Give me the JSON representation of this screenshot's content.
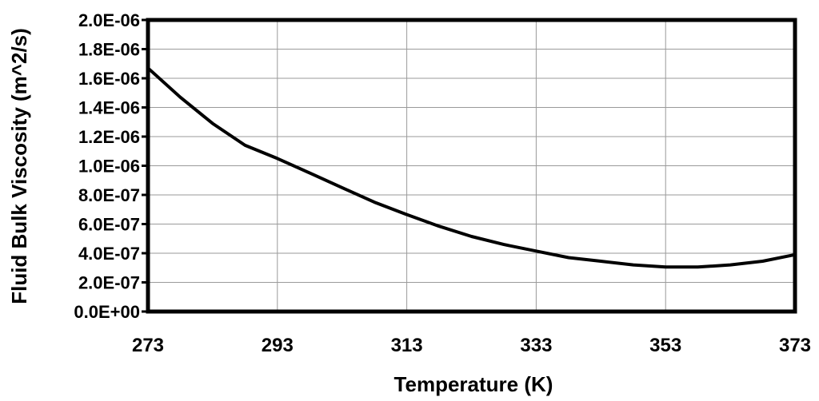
{
  "chart_data": {
    "type": "line",
    "xlabel": "Temperature (K)",
    "ylabel": "Fluid Bulk Viscosity (m^2/s)",
    "xlim": [
      273,
      373
    ],
    "ylim": [
      0,
      2e-06
    ],
    "x_ticks": [
      "273",
      "293",
      "313",
      "333",
      "353",
      "373"
    ],
    "x_tick_values": [
      273,
      293,
      313,
      333,
      353,
      373
    ],
    "y_ticks": [
      "0.0E+00",
      "2.0E-07",
      "4.0E-07",
      "6.0E-07",
      "8.0E-07",
      "1.0E-06",
      "1.2E-06",
      "1.4E-06",
      "1.6E-06",
      "1.8E-06",
      "2.0E-06"
    ],
    "y_tick_values": [
      0,
      2e-07,
      4e-07,
      6e-07,
      8e-07,
      1e-06,
      1.2e-06,
      1.4e-06,
      1.6e-06,
      1.8e-06,
      2e-06
    ],
    "grid": true,
    "series": [
      {
        "x": [
          273,
          278,
          283,
          288,
          293,
          298,
          303,
          308,
          313,
          318,
          323,
          328,
          333,
          338,
          343,
          348,
          353,
          358,
          363,
          368,
          373
        ],
        "y": [
          1.67e-06,
          1.47e-06,
          1.29e-06,
          1.14e-06,
          1.05e-06,
          9.5e-07,
          8.5e-07,
          7.5e-07,
          6.65e-07,
          5.85e-07,
          5.15e-07,
          4.6e-07,
          4.15e-07,
          3.7e-07,
          3.45e-07,
          3.2e-07,
          3.05e-07,
          3.05e-07,
          3.2e-07,
          3.45e-07,
          3.9e-07
        ]
      }
    ]
  }
}
